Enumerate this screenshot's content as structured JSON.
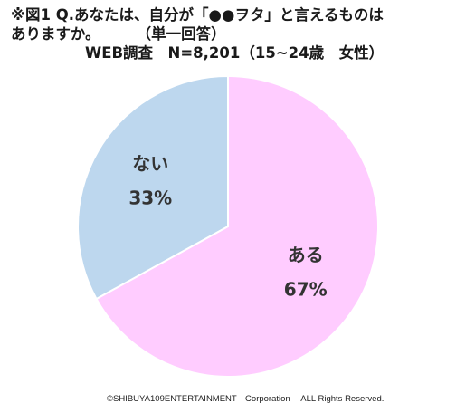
{
  "title": {
    "line1": "※図1 Q.あなたは、自分が「●●ヲタ」と言えるものは",
    "line2_main": "ありますか。",
    "line2_note": "（単一回答）",
    "line3": "WEB調査　N=8,201（15~24歳　女性）"
  },
  "chart_data": {
    "type": "pie",
    "title": "※図1 Q.あなたは、自分が「●●ヲタ」と言えるものはありますか。（単一回答）",
    "subtitle": "WEB調査　N=8,201（15~24歳　女性）",
    "slices": [
      {
        "label": "ある",
        "value": 67,
        "value_label": "67%",
        "color": "#ffccff"
      },
      {
        "label": "ない",
        "value": 33,
        "value_label": "33%",
        "color": "#bdd7ee"
      }
    ],
    "start": "12 o'clock",
    "direction": "clockwise",
    "stroke_color": "#ffffff"
  },
  "footer": {
    "copyright": "©SHIBUYA109ENTERTAINMENT　Corporation　 ALL Rights Reserved."
  }
}
